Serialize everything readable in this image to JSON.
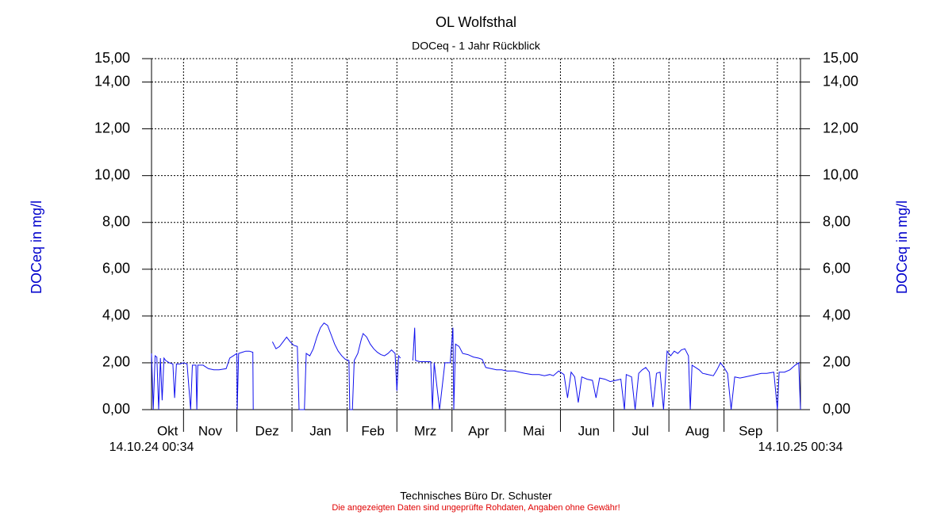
{
  "chart_data": {
    "type": "line",
    "title": "OL Wolfsthal",
    "subtitle": "DOCeq - 1 Jahr Rückblick",
    "y_label": "DOCeq in mg/l",
    "x_start_label": "14.10.24 00:34",
    "x_end_label": "14.10.25 00:34",
    "footer": "Technisches Büro Dr. Schuster",
    "disclaimer": "Die angezeigten Daten sind ungeprüfte Rohdaten, Angaben ohne Gewähr!",
    "xlim": [
      0,
      365
    ],
    "xticks": [
      {
        "value": 9,
        "label": "Okt"
      },
      {
        "value": 33,
        "label": "Nov"
      },
      {
        "value": 65,
        "label": "Dez"
      },
      {
        "value": 95,
        "label": "Jan"
      },
      {
        "value": 124.5,
        "label": "Feb"
      },
      {
        "value": 154,
        "label": "Mrz"
      },
      {
        "value": 184,
        "label": "Apr"
      },
      {
        "value": 215,
        "label": "Mai"
      },
      {
        "value": 246,
        "label": "Jun"
      },
      {
        "value": 275,
        "label": "Jul"
      },
      {
        "value": 307,
        "label": "Aug"
      },
      {
        "value": 337,
        "label": "Sep"
      }
    ],
    "x_grid": [
      18,
      48,
      79,
      110,
      138,
      169,
      199,
      230,
      260,
      291,
      322,
      352
    ],
    "ylim": [
      0,
      15
    ],
    "yticks": [
      {
        "value": 0,
        "label": "0,00"
      },
      {
        "value": 2,
        "label": "2,00"
      },
      {
        "value": 4,
        "label": "4,00"
      },
      {
        "value": 6,
        "label": "6,00"
      },
      {
        "value": 8,
        "label": "8,00"
      },
      {
        "value": 10,
        "label": "10,00"
      },
      {
        "value": 12,
        "label": "12,00"
      },
      {
        "value": 14,
        "label": "14,00"
      },
      {
        "value": 15,
        "label": "15,00"
      }
    ],
    "grid": true,
    "x": [
      0,
      1,
      2,
      3,
      4,
      5,
      6,
      7,
      8,
      10,
      12,
      13,
      14,
      16,
      18,
      20,
      22,
      23,
      25,
      25.5,
      26,
      29,
      32,
      35,
      38,
      42,
      44,
      46,
      48,
      48.2,
      49,
      51,
      53,
      55,
      57,
      57.2,
      60,
      68,
      70,
      72,
      74,
      76,
      78,
      80,
      82,
      83,
      86,
      87,
      89,
      91,
      93,
      95,
      97,
      99,
      101,
      103,
      105,
      107,
      109,
      111,
      111.5,
      113,
      114,
      116,
      118,
      119,
      121,
      123,
      125,
      127,
      129,
      131,
      133,
      135,
      137,
      138,
      139,
      140,
      141,
      147,
      148,
      148.5,
      151,
      154,
      157,
      158,
      159,
      162,
      165,
      168,
      169.5,
      170,
      171,
      173,
      175,
      178,
      181,
      184,
      186,
      188,
      191,
      194,
      197,
      200,
      204,
      207,
      210,
      214,
      218,
      221,
      224,
      226,
      229,
      232,
      234,
      236,
      238,
      240,
      242,
      245,
      248,
      250,
      252,
      255,
      258,
      261,
      264,
      266,
      267,
      270,
      272,
      274,
      276,
      278,
      280,
      282,
      284,
      286,
      288,
      290,
      292,
      294,
      296,
      298,
      300,
      302,
      303,
      304,
      306,
      308,
      310,
      313,
      316,
      318,
      320,
      322,
      324,
      326,
      328,
      331,
      334,
      337,
      340,
      343,
      346,
      350,
      352,
      353,
      356,
      359,
      362,
      364,
      365
    ],
    "series": [
      {
        "name": "DOCeq",
        "color": "#1010ee",
        "values": [
          2.4,
          0,
          2.3,
          2.25,
          0,
          2.2,
          0.4,
          2.2,
          2.1,
          2.0,
          1.95,
          0.5,
          1.95,
          1.95,
          2.0,
          1.95,
          0,
          1.9,
          1.9,
          0,
          1.9,
          1.9,
          1.75,
          1.7,
          1.7,
          1.75,
          2.2,
          2.3,
          2.4,
          0,
          2.4,
          2.45,
          2.5,
          2.5,
          2.45,
          0,
          null,
          2.9,
          2.6,
          2.7,
          2.9,
          3.1,
          2.9,
          2.75,
          2.7,
          0,
          0,
          2.4,
          2.3,
          2.6,
          3.1,
          3.5,
          3.7,
          3.6,
          3.2,
          2.8,
          2.5,
          2.3,
          2.15,
          2.1,
          0,
          0,
          2.1,
          2.4,
          3.0,
          3.25,
          3.1,
          2.8,
          2.6,
          2.45,
          2.35,
          2.3,
          2.4,
          2.55,
          2.4,
          0.8,
          2.3,
          2.2,
          null,
          2.1,
          3.5,
          2.1,
          2.05,
          2.05,
          2.05,
          0,
          2.0,
          0,
          2.0,
          2.0,
          3.5,
          0,
          2.8,
          2.7,
          2.4,
          2.35,
          2.25,
          2.2,
          2.15,
          1.8,
          1.75,
          1.7,
          1.7,
          1.65,
          1.65,
          1.6,
          1.55,
          1.5,
          1.5,
          1.45,
          1.5,
          1.45,
          1.65,
          1.5,
          0.5,
          1.6,
          1.4,
          0.3,
          1.4,
          1.3,
          1.25,
          0.5,
          1.35,
          1.3,
          1.2,
          1.25,
          1.3,
          0,
          1.5,
          1.4,
          0,
          1.55,
          1.7,
          1.8,
          1.6,
          0.1,
          1.55,
          1.6,
          0,
          2.5,
          2.3,
          2.5,
          2.4,
          2.55,
          2.6,
          2.3,
          0,
          1.9,
          1.8,
          1.7,
          1.55,
          1.5,
          1.45,
          1.7,
          2.0,
          1.8,
          1.55,
          0,
          1.4,
          1.35,
          1.4,
          1.45,
          1.5,
          1.55,
          1.55,
          1.6,
          0,
          1.6,
          1.6,
          1.7,
          1.9,
          2.0,
          0
        ]
      }
    ]
  }
}
